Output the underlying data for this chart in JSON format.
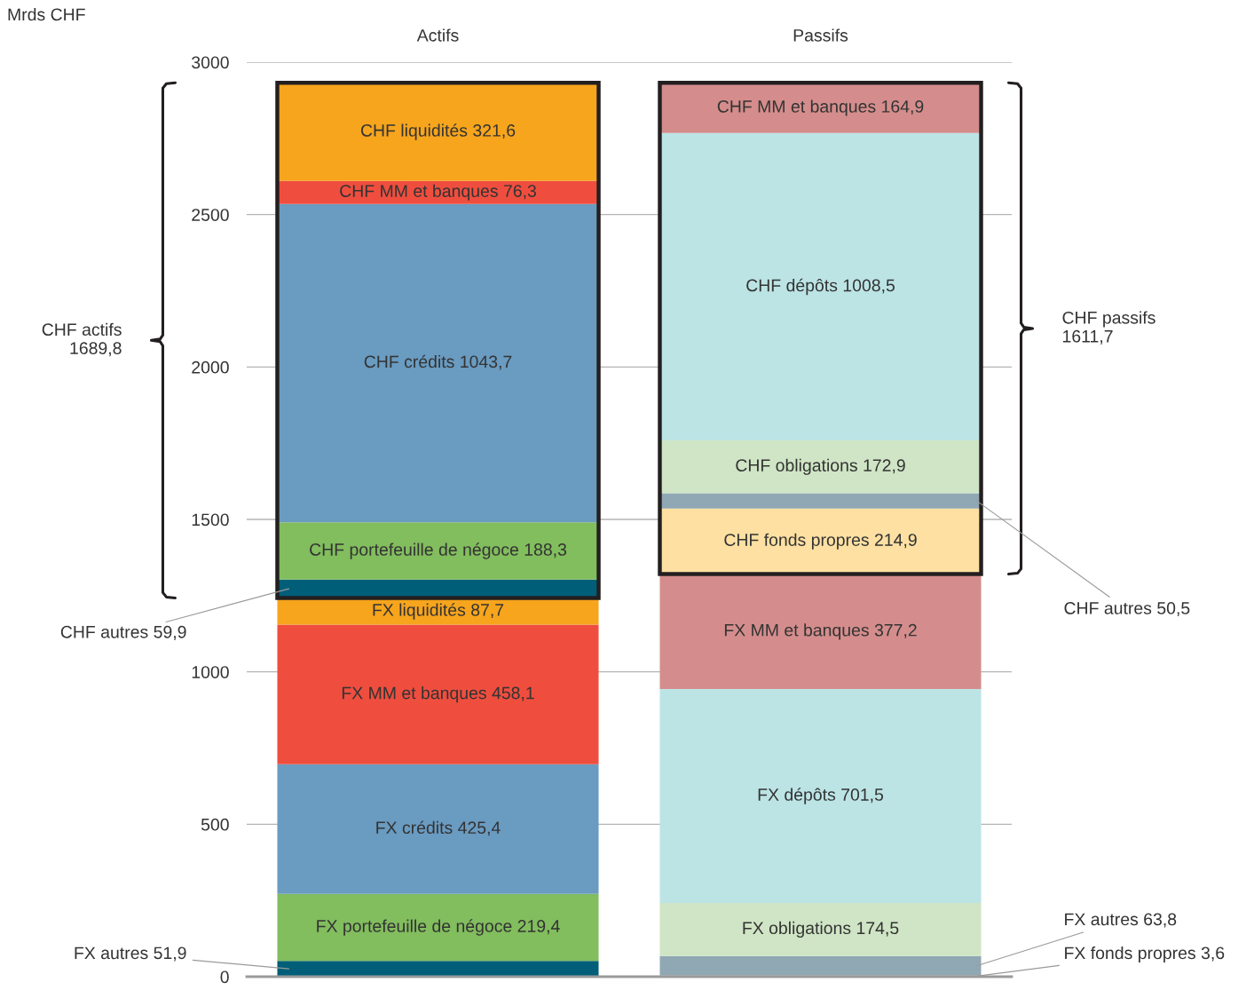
{
  "chart_data": {
    "type": "bar",
    "stacked": true,
    "categories": [
      "Actifs",
      "Passifs"
    ],
    "ylim": [
      0,
      3000
    ],
    "yticks": [
      0,
      500,
      1000,
      1500,
      2000,
      2500,
      3000
    ],
    "grid": "y",
    "series": [
      {
        "colors": [
          "#005e78",
          "#fde0a2"
        ],
        "values": [
          51.9,
          3.6
        ],
        "value_labels": [
          "FX autres 51,9",
          "FX fonds propres 3,6"
        ]
      },
      {
        "colors": [
          "#82bd5e",
          "#90a8b4"
        ],
        "values": [
          219.4,
          63.8
        ],
        "value_labels": [
          "FX portefeuille de négoce 219,4",
          "FX autres 63,8"
        ]
      },
      {
        "colors": [
          "#6a9bc1",
          "#cfe5c5"
        ],
        "values": [
          425.4,
          174.5
        ],
        "value_labels": [
          "FX crédits 425,4",
          "FX obligations 174,5"
        ]
      },
      {
        "colors": [
          "#ef4e3f",
          "#bce4e5"
        ],
        "values": [
          458.1,
          701.5
        ],
        "value_labels": [
          "FX MM et banques 458,1",
          "FX dépôts 701,5"
        ]
      },
      {
        "colors": [
          "#f7a51d",
          "#d48d8c"
        ],
        "values": [
          87.7,
          377.2
        ],
        "value_labels": [
          "FX liquidités 87,7",
          "FX MM et banques 377,2"
        ]
      },
      {
        "colors": [
          "#005e78",
          "#fde0a2"
        ],
        "values": [
          59.9,
          214.9
        ],
        "value_labels": [
          "CHF autres 59,9",
          "CHF fonds propres 214,9"
        ]
      },
      {
        "colors": [
          "#82bd5e",
          "#90a8b4"
        ],
        "values": [
          188.3,
          50.5
        ],
        "value_labels": [
          "CHF portefeuille de négoce 188,3",
          "CHF autres 50,5"
        ]
      },
      {
        "colors": [
          "#6a9bc1",
          "#cfe5c5"
        ],
        "values": [
          1043.7,
          172.9
        ],
        "value_labels": [
          "CHF crédits 1043,7",
          "CHF obligations 172,9"
        ]
      },
      {
        "colors": [
          "#ef4e3f",
          "#bce4e5"
        ],
        "values": [
          76.3,
          1008.5
        ],
        "value_labels": [
          "CHF MM et banques 76,3",
          "CHF dépôts 1008,5"
        ]
      },
      {
        "colors": [
          "#f7a51d",
          "#d48d8c"
        ],
        "values": [
          321.6,
          164.9
        ],
        "value_labels": [
          "CHF liquidités 321,6",
          "CHF MM et banques 164,9"
        ]
      }
    ],
    "annotations": [
      "Mrds CHF",
      "CHF actifs\n1689,8",
      "CHF passifs\n1611,7"
    ]
  }
}
